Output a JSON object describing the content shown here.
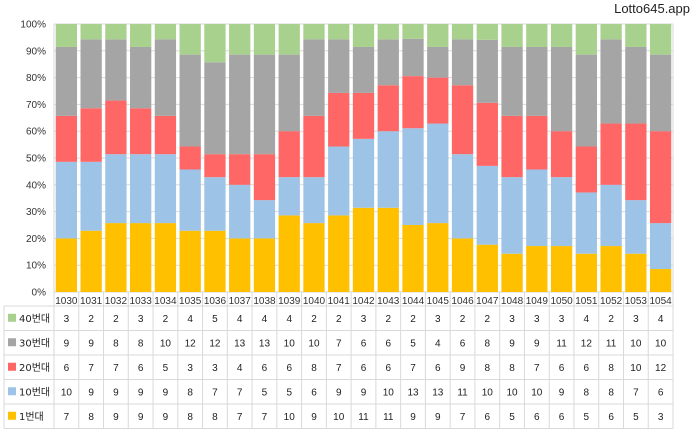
{
  "watermark": "Lotto645.app",
  "chart_data": {
    "type": "bar",
    "stacked": "percent",
    "ylim": [
      0,
      100
    ],
    "y_ticks": [
      "0%",
      "10%",
      "20%",
      "30%",
      "40%",
      "50%",
      "60%",
      "70%",
      "80%",
      "90%",
      "100%"
    ],
    "grid": true,
    "legend": "table-left",
    "categories": [
      "1030",
      "1031",
      "1032",
      "1033",
      "1034",
      "1035",
      "1036",
      "1037",
      "1038",
      "1039",
      "1040",
      "1041",
      "1042",
      "1043",
      "1044",
      "1045",
      "1046",
      "1047",
      "1048",
      "1049",
      "1050",
      "1051",
      "1052",
      "1053",
      "1054"
    ],
    "series": [
      {
        "name": "1번대",
        "color": "#FFC000",
        "values": [
          7,
          8,
          9,
          9,
          9,
          8,
          8,
          7,
          7,
          10,
          9,
          10,
          11,
          11,
          9,
          9,
          7,
          6,
          5,
          6,
          6,
          5,
          6,
          5,
          3
        ]
      },
      {
        "name": "10번대",
        "color": "#9DC3E6",
        "values": [
          10,
          9,
          9,
          9,
          9,
          8,
          7,
          7,
          5,
          5,
          6,
          9,
          9,
          10,
          13,
          13,
          11,
          10,
          10,
          10,
          9,
          8,
          8,
          7,
          6
        ]
      },
      {
        "name": "20번대",
        "color": "#FF6666",
        "values": [
          6,
          7,
          7,
          6,
          5,
          3,
          3,
          4,
          6,
          6,
          8,
          7,
          6,
          6,
          7,
          6,
          9,
          8,
          8,
          7,
          6,
          6,
          8,
          10,
          12
        ]
      },
      {
        "name": "30번대",
        "color": "#A5A5A5",
        "values": [
          9,
          9,
          8,
          8,
          10,
          12,
          12,
          13,
          13,
          10,
          10,
          7,
          6,
          6,
          5,
          4,
          6,
          8,
          9,
          9,
          11,
          12,
          11,
          10,
          10
        ]
      },
      {
        "name": "40번대",
        "color": "#A9D18E",
        "values": [
          3,
          2,
          2,
          3,
          2,
          4,
          5,
          4,
          4,
          4,
          2,
          2,
          3,
          2,
          2,
          3,
          2,
          2,
          3,
          3,
          3,
          4,
          2,
          3,
          4
        ]
      }
    ]
  }
}
